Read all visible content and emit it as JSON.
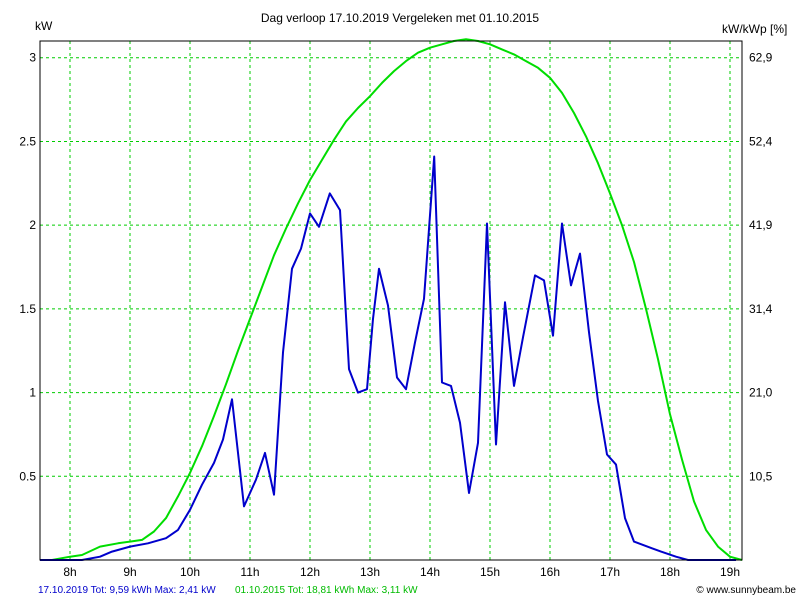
{
  "colors": {
    "background": "#ffffff",
    "grid": "#00cc00",
    "axis": "#000000",
    "series_today": "#0000cc",
    "series_compare": "#00dd00"
  },
  "chart_data": {
    "type": "line",
    "title": "Dag  verloop 17.10.2019   Vergeleken met 01.10.2015",
    "ylabel_left": "kW",
    "ylabel_right": "kW/kWp [%]",
    "xlim": [
      7.5,
      19.2
    ],
    "ylim": [
      0,
      3.1
    ],
    "x_ticks": [
      8,
      9,
      10,
      11,
      12,
      13,
      14,
      15,
      16,
      17,
      18,
      19
    ],
    "x_tick_labels": [
      "8h",
      "9h",
      "10h",
      "11h",
      "12h",
      "13h",
      "14h",
      "15h",
      "16h",
      "17h",
      "18h",
      "19h"
    ],
    "y_ticks_left": [
      0.5,
      1,
      1.5,
      2,
      2.5,
      3
    ],
    "y_tick_labels_left": [
      "0.5",
      "1",
      "1.5",
      "2",
      "2.5",
      "3"
    ],
    "y_tick_labels_right": [
      "10,5",
      "21,0",
      "31,4",
      "41,9",
      "52,4",
      "62,9"
    ],
    "grid": true,
    "series": [
      {
        "name": "17.10.2019",
        "color": "#0000cc",
        "x": [
          7.5,
          8.2,
          8.5,
          8.7,
          9.0,
          9.3,
          9.6,
          9.8,
          10.0,
          10.2,
          10.4,
          10.55,
          10.7,
          10.9,
          11.1,
          11.25,
          11.4,
          11.55,
          11.7,
          11.85,
          12.0,
          12.15,
          12.33,
          12.5,
          12.65,
          12.8,
          12.95,
          13.05,
          13.15,
          13.3,
          13.45,
          13.6,
          13.75,
          13.9,
          14.07,
          14.2,
          14.35,
          14.5,
          14.65,
          14.8,
          14.95,
          15.1,
          15.25,
          15.4,
          15.55,
          15.75,
          15.9,
          16.05,
          16.2,
          16.35,
          16.5,
          16.65,
          16.8,
          16.95,
          17.1,
          17.25,
          17.4,
          17.55,
          17.7,
          17.85,
          18.1,
          18.3,
          18.5,
          18.7,
          18.9,
          19.1
        ],
        "values": [
          0,
          0,
          0.02,
          0.05,
          0.08,
          0.1,
          0.13,
          0.18,
          0.3,
          0.45,
          0.58,
          0.72,
          0.96,
          0.32,
          0.48,
          0.64,
          0.39,
          1.24,
          1.74,
          1.86,
          2.07,
          1.99,
          2.19,
          2.09,
          1.14,
          1.0,
          1.02,
          1.44,
          1.74,
          1.52,
          1.09,
          1.02,
          1.3,
          1.56,
          2.41,
          1.06,
          1.04,
          0.82,
          0.4,
          0.7,
          2.01,
          0.69,
          1.54,
          1.04,
          1.33,
          1.7,
          1.67,
          1.34,
          2.01,
          1.64,
          1.83,
          1.36,
          0.95,
          0.63,
          0.57,
          0.25,
          0.11,
          0.09,
          0.07,
          0.05,
          0.02,
          0,
          0,
          0,
          0,
          0
        ]
      },
      {
        "name": "01.10.2015",
        "color": "#00dd00",
        "x": [
          7.5,
          7.7,
          8.0,
          8.2,
          8.5,
          8.8,
          9.0,
          9.2,
          9.4,
          9.6,
          9.8,
          10.0,
          10.2,
          10.4,
          10.6,
          10.8,
          11.0,
          11.2,
          11.4,
          11.6,
          11.8,
          12.0,
          12.2,
          12.4,
          12.6,
          12.8,
          13.0,
          13.2,
          13.4,
          13.6,
          13.8,
          14.0,
          14.2,
          14.4,
          14.6,
          14.8,
          15.0,
          15.2,
          15.4,
          15.6,
          15.8,
          16.0,
          16.2,
          16.4,
          16.6,
          16.8,
          17.0,
          17.2,
          17.4,
          17.6,
          17.8,
          18.0,
          18.2,
          18.4,
          18.6,
          18.8,
          19.0,
          19.2
        ],
        "values": [
          0,
          0,
          0.02,
          0.03,
          0.08,
          0.1,
          0.11,
          0.12,
          0.17,
          0.25,
          0.38,
          0.52,
          0.68,
          0.86,
          1.05,
          1.25,
          1.44,
          1.63,
          1.82,
          1.98,
          2.13,
          2.27,
          2.39,
          2.51,
          2.62,
          2.7,
          2.77,
          2.85,
          2.92,
          2.98,
          3.03,
          3.06,
          3.08,
          3.1,
          3.11,
          3.1,
          3.08,
          3.05,
          3.02,
          2.98,
          2.94,
          2.88,
          2.79,
          2.67,
          2.53,
          2.37,
          2.19,
          2.0,
          1.78,
          1.5,
          1.2,
          0.87,
          0.6,
          0.35,
          0.18,
          0.08,
          0.02,
          0
        ]
      }
    ]
  },
  "footer": {
    "left_blue": "17.10.2019 Tot: 9,59 kWh Max: 2,41 kW",
    "left_green": "01.10.2015 Tot: 18,81 kWh Max: 3,11 kW",
    "right": "© www.sunnybeam.be"
  }
}
